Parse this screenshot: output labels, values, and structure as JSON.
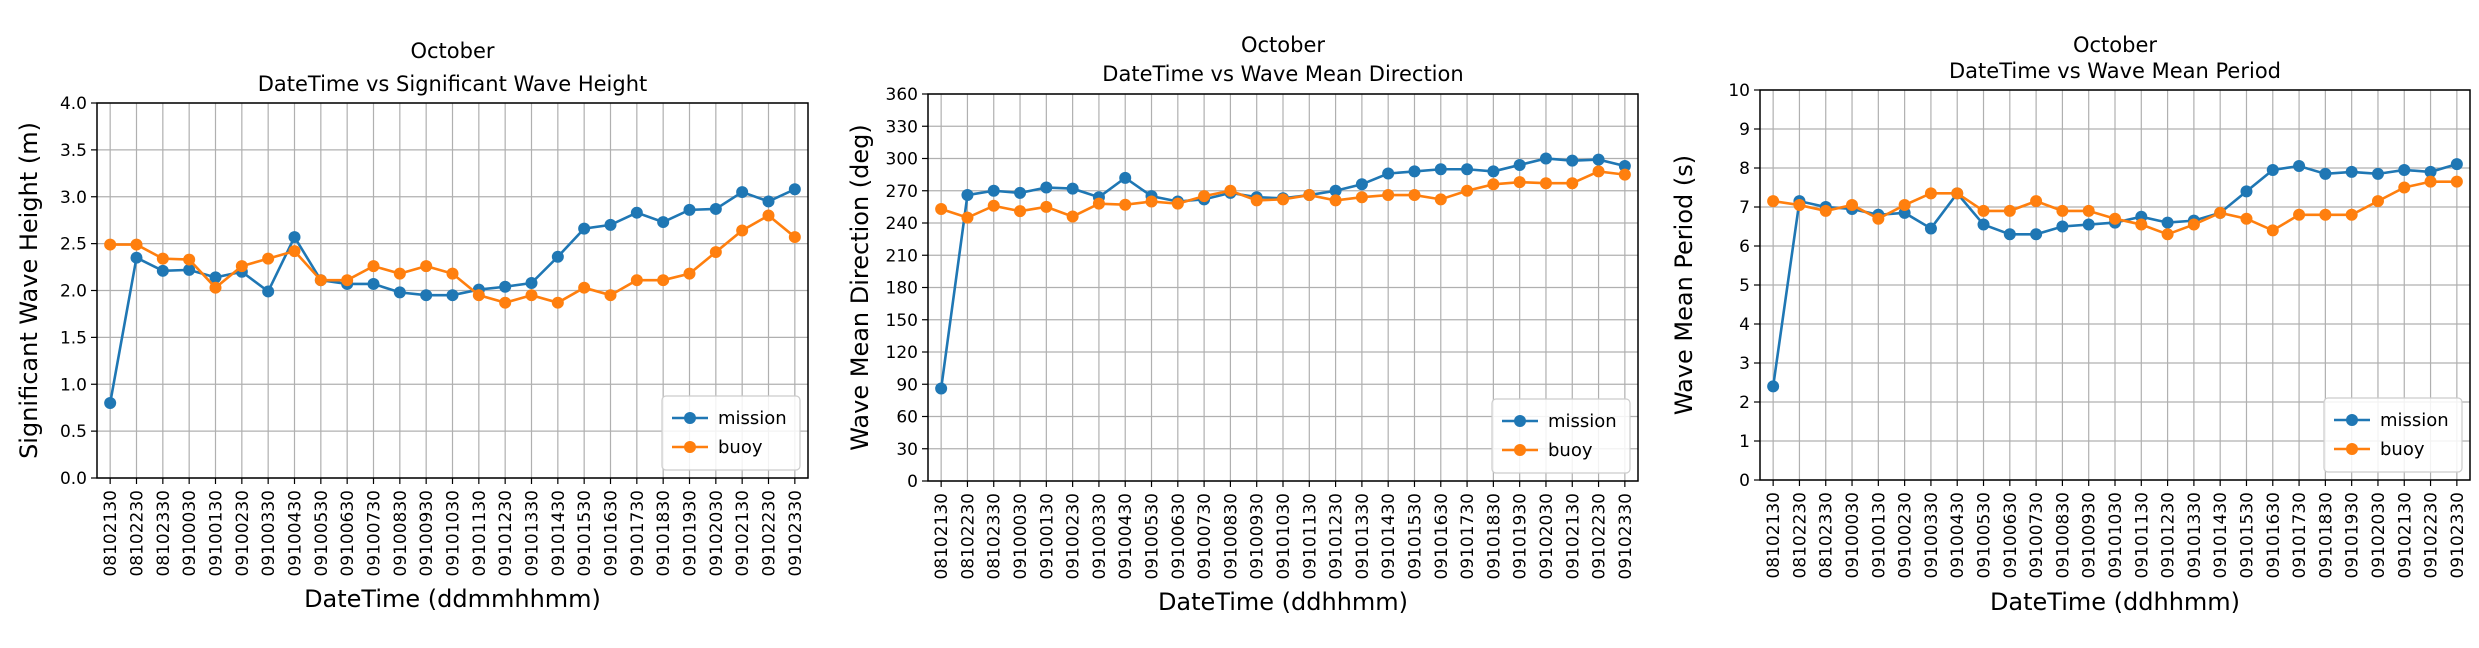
{
  "chart_data": [
    {
      "type": "line",
      "title": "October",
      "subtitle": "DateTime vs Significant Wave Height",
      "xlabel": "DateTime (ddmmhhmm)",
      "ylabel": "Significant Wave Height (m)",
      "ylim": [
        0,
        4
      ],
      "yticks": [
        "0.0",
        "0.5",
        "1.0",
        "1.5",
        "2.0",
        "2.5",
        "3.0",
        "3.5",
        "4.0"
      ],
      "grid": true,
      "legend_position": "lower-right",
      "categories": [
        "08102130",
        "08102230",
        "08102330",
        "09100030",
        "09100130",
        "09100230",
        "09100330",
        "09100430",
        "09100530",
        "09100630",
        "09100730",
        "09100830",
        "09100930",
        "09101030",
        "09101130",
        "09101230",
        "09101330",
        "09101430",
        "09101530",
        "09101630",
        "09101730",
        "09101830",
        "09101930",
        "09102030",
        "09102130",
        "09102230",
        "09102330"
      ],
      "series": [
        {
          "name": "mission",
          "color": "#1f77b4",
          "values": [
            0.8,
            2.35,
            2.21,
            2.22,
            2.14,
            2.2,
            1.99,
            2.57,
            2.11,
            2.07,
            2.07,
            1.98,
            1.95,
            1.95,
            2.01,
            2.04,
            2.08,
            2.36,
            2.66,
            2.7,
            2.83,
            2.73,
            2.86,
            2.87,
            3.05,
            2.95,
            3.08
          ]
        },
        {
          "name": "buoy",
          "color": "#ff7f0e",
          "values": [
            2.49,
            2.49,
            2.34,
            2.33,
            2.03,
            2.26,
            2.34,
            2.42,
            2.11,
            2.11,
            2.26,
            2.18,
            2.26,
            2.18,
            1.95,
            1.87,
            1.95,
            1.87,
            2.03,
            1.95,
            2.11,
            2.11,
            2.18,
            2.41,
            2.64,
            2.8,
            2.57
          ]
        }
      ]
    },
    {
      "type": "line",
      "title": "October",
      "subtitle": "DateTime vs Wave Mean Direction",
      "xlabel": "DateTime (ddhhmm)",
      "ylabel": "Wave Mean Direction (deg)",
      "ylim": [
        0,
        360
      ],
      "yticks": [
        "0",
        "30",
        "60",
        "90",
        "120",
        "150",
        "180",
        "210",
        "240",
        "270",
        "300",
        "330",
        "360"
      ],
      "grid": true,
      "legend_position": "lower-right",
      "categories": [
        "08102130",
        "08102230",
        "08102330",
        "09100030",
        "09100130",
        "09100230",
        "09100330",
        "09100430",
        "09100530",
        "09100630",
        "09100730",
        "09100830",
        "09100930",
        "09101030",
        "09101130",
        "09101230",
        "09101330",
        "09101430",
        "09101530",
        "09101630",
        "09101730",
        "09101830",
        "09101930",
        "09102030",
        "09102130",
        "09102230",
        "09102330"
      ],
      "series": [
        {
          "name": "mission",
          "color": "#1f77b4",
          "values": [
            86,
            266,
            270,
            268,
            273,
            272,
            264,
            282,
            265,
            260,
            262,
            268,
            264,
            263,
            266,
            270,
            276,
            286,
            288,
            290,
            290,
            288,
            294,
            300,
            298,
            299,
            293
          ]
        },
        {
          "name": "buoy",
          "color": "#ff7f0e",
          "values": [
            253,
            245,
            256,
            251,
            255,
            246,
            258,
            257,
            260,
            258,
            265,
            270,
            261,
            262,
            266,
            261,
            264,
            266,
            266,
            262,
            270,
            276,
            278,
            277,
            277,
            288,
            285
          ]
        }
      ]
    },
    {
      "type": "line",
      "title": "October",
      "subtitle": "DateTime vs Wave Mean Period",
      "xlabel": "DateTime (ddhhmm)",
      "ylabel": "Wave Mean Period (s)",
      "ylim": [
        0,
        10
      ],
      "yticks": [
        "0",
        "1",
        "2",
        "3",
        "4",
        "5",
        "6",
        "7",
        "8",
        "9",
        "10"
      ],
      "grid": true,
      "legend_position": "lower-right",
      "categories": [
        "08102130",
        "08102230",
        "08102330",
        "09100030",
        "09100130",
        "09100230",
        "09100330",
        "09100430",
        "09100530",
        "09100630",
        "09100730",
        "09100830",
        "09100930",
        "09101030",
        "09101130",
        "09101230",
        "09101330",
        "09101430",
        "09101530",
        "09101630",
        "09101730",
        "09101830",
        "09101930",
        "09102030",
        "09102130",
        "09102230",
        "09102330"
      ],
      "series": [
        {
          "name": "mission",
          "color": "#1f77b4",
          "values": [
            2.4,
            7.15,
            7.0,
            6.95,
            6.8,
            6.85,
            6.45,
            7.35,
            6.55,
            6.3,
            6.3,
            6.5,
            6.55,
            6.6,
            6.75,
            6.6,
            6.65,
            6.85,
            7.4,
            7.95,
            8.05,
            7.85,
            7.9,
            7.85,
            7.95,
            7.9,
            8.1
          ]
        },
        {
          "name": "buoy",
          "color": "#ff7f0e",
          "values": [
            7.15,
            7.05,
            6.9,
            7.05,
            6.7,
            7.05,
            7.35,
            7.35,
            6.9,
            6.9,
            7.15,
            6.9,
            6.9,
            6.7,
            6.55,
            6.3,
            6.55,
            6.85,
            6.7,
            6.4,
            6.8,
            6.8,
            6.8,
            7.15,
            7.5,
            7.65,
            7.65
          ]
        }
      ]
    }
  ]
}
